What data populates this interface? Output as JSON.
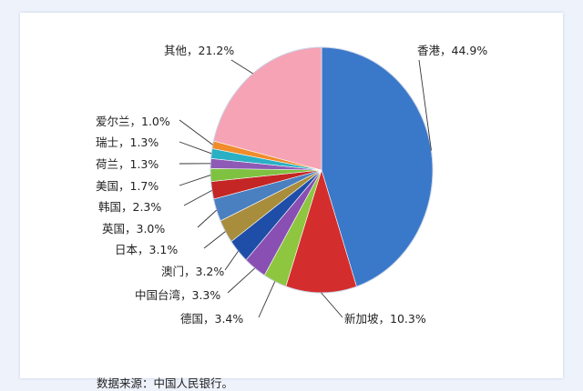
{
  "chart_data": {
    "type": "pie",
    "title": "",
    "unit": "%",
    "slices": [
      {
        "label": "香港",
        "value": 44.9,
        "display": "香港，44.9%",
        "color": "#3a78c9"
      },
      {
        "label": "新加坡",
        "value": 10.3,
        "display": "新加坡，10.3%",
        "color": "#d42d2d"
      },
      {
        "label": "德国",
        "value": 3.4,
        "display": "德国，3.4%",
        "color": "#8ec63f"
      },
      {
        "label": "中国台湾",
        "value": 3.3,
        "display": "中国台湾，3.3%",
        "color": "#8a4fb3"
      },
      {
        "label": "澳门",
        "value": 3.2,
        "display": "澳门，3.2%",
        "color": "#1f4ea8"
      },
      {
        "label": "日本",
        "value": 3.1,
        "display": "日本，3.1%",
        "color": "#a88d3c"
      },
      {
        "label": "英国",
        "value": 3.0,
        "display": "英国，3.0%",
        "color": "#4a7fc0"
      },
      {
        "label": "韩国",
        "value": 2.3,
        "display": "韩国，2.3%",
        "color": "#c42525"
      },
      {
        "label": "美国",
        "value": 1.7,
        "display": "美国，1.7%",
        "color": "#7fc241"
      },
      {
        "label": "荷兰",
        "value": 1.3,
        "display": "荷兰，1.3%",
        "color": "#8e5ab5"
      },
      {
        "label": "瑞士",
        "value": 1.3,
        "display": "瑞士，1.3%",
        "color": "#2ab0c5"
      },
      {
        "label": "爱尔兰",
        "value": 1.0,
        "display": "爱尔兰，1.0%",
        "color": "#f08c2a"
      },
      {
        "label": "其他",
        "value": 21.2,
        "display": "其他，21.2%",
        "color": "#f5a3b5"
      }
    ],
    "legend": "none",
    "labels": "outside-with-leader-lines"
  },
  "source_note": "数据来源：中国人民银行。"
}
